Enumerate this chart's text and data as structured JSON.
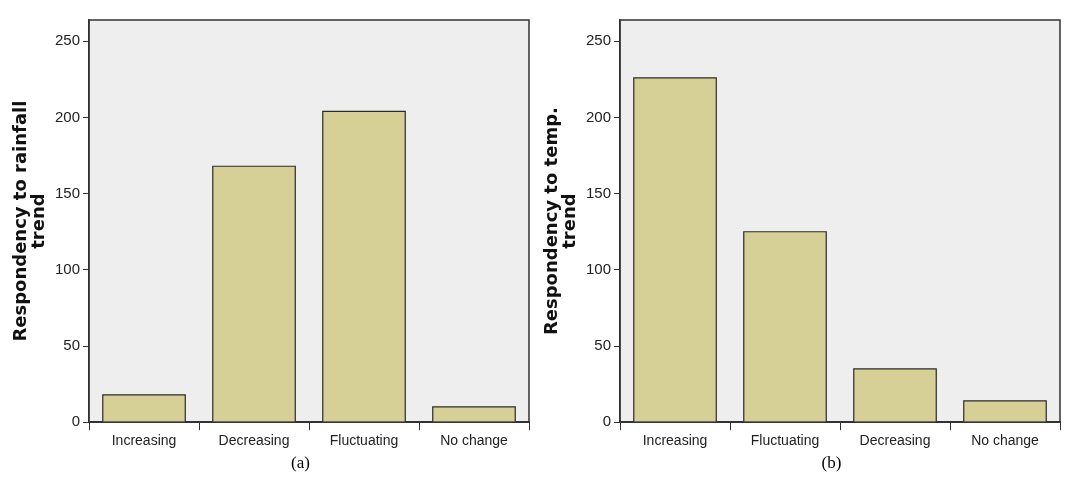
{
  "chart_data": [
    {
      "type": "bar",
      "categories": [
        "Increasing",
        "Decreasing",
        "Fluctuating",
        "No change"
      ],
      "values": [
        18,
        168,
        204,
        10
      ],
      "color": "#d6d096",
      "ylabel": "Respondency to rainfall trend",
      "ylim": [
        0,
        264
      ],
      "yticks": [
        0,
        50,
        100,
        150,
        200,
        250
      ],
      "grid": false,
      "legend": false,
      "annotations": [
        "(a)"
      ]
    },
    {
      "type": "bar",
      "categories": [
        "Increasing",
        "Fluctuating",
        "Decreasing",
        "No change"
      ],
      "values": [
        226,
        125,
        35,
        14
      ],
      "color": "#d6d096",
      "ylabel": "Respondency to temp. trend",
      "ylim": [
        0,
        264
      ],
      "yticks": [
        0,
        50,
        100,
        150,
        200,
        250
      ],
      "grid": false,
      "legend": false,
      "annotations": [
        "(b)"
      ]
    }
  ]
}
